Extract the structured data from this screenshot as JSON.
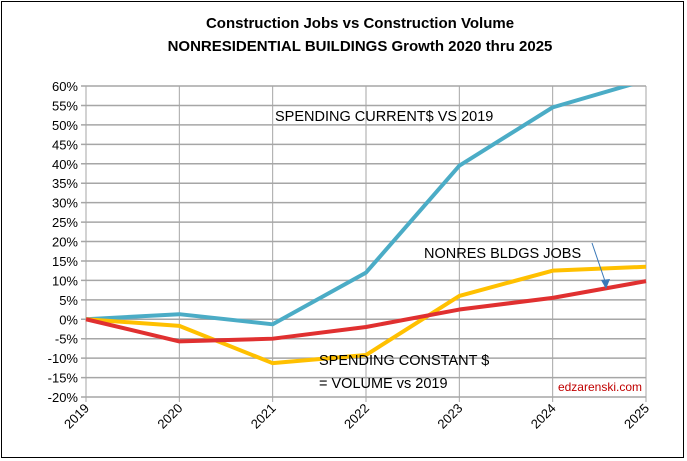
{
  "chart_data": {
    "type": "line",
    "title": "Construction Jobs vs Construction Volume",
    "subtitle": "NONRESIDENTIAL BUILDINGS Growth 2020 thru 2025",
    "x": [
      "2019",
      "2020",
      "2021",
      "2022",
      "2023",
      "2024",
      "2025"
    ],
    "ylim": [
      -20,
      60
    ],
    "ytick_step": 5,
    "ytick_format": "%",
    "grid": true,
    "series": [
      {
        "name": "SPENDING CURRENT$ VS 2019",
        "color": "#4bacc6",
        "values": [
          0,
          1.3,
          -1.3,
          12,
          39.5,
          54.5,
          61.5
        ]
      },
      {
        "name": "SPENDING CONSTANT $ = VOLUME vs 2019",
        "color": "#ffc000",
        "values": [
          0,
          -1.7,
          -11.3,
          -9.2,
          6,
          12.5,
          13.5
        ]
      },
      {
        "name": "NONRES BLDGS JOBS",
        "color": "#e03030",
        "values": [
          0,
          -5.7,
          -5,
          -2,
          2.5,
          5.5,
          9.8
        ]
      }
    ],
    "annotations": {
      "current": "SPENDING CURRENT$ VS 2019",
      "jobs": "NONRES BLDGS JOBS",
      "constant_1": "SPENDING CONSTANT $",
      "constant_2": "= VOLUME vs 2019"
    },
    "watermark": "edzarenski.com"
  }
}
